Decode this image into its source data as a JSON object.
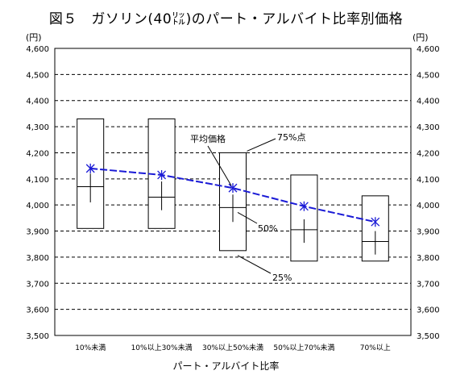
{
  "chart_data": {
    "type": "box",
    "title": "図５　ガソリン(40㍑)のパート・アルバイト比率別価格",
    "xlabel": "パート・アルバイト比率",
    "ylabel": "(円)",
    "ylim": [
      3500,
      4600
    ],
    "ytick_step": 100,
    "grid": true,
    "categories": [
      "10%未満",
      "10%以上30%未満",
      "30%以上50%未満",
      "50%以上70%未満",
      "70%以上"
    ],
    "series": [
      {
        "name": "75%点",
        "values": [
          4330,
          4330,
          4200,
          4115,
          4035
        ]
      },
      {
        "name": "50%",
        "values": [
          4070,
          4030,
          3990,
          3905,
          3860
        ]
      },
      {
        "name": "25%",
        "values": [
          3910,
          3910,
          3825,
          3785,
          3785
        ]
      },
      {
        "name": "平均価格",
        "values": [
          4140,
          4115,
          4065,
          3995,
          3935
        ]
      }
    ],
    "whiskers": [
      [
        4010,
        4120
      ],
      [
        3980,
        4090
      ],
      [
        3935,
        4040
      ],
      [
        3855,
        3945
      ],
      [
        3810,
        3900
      ]
    ],
    "annotations": [
      "平均価格",
      "75%点",
      "50%",
      "25%"
    ],
    "colors": {
      "mean_line": "#1a1ad6",
      "box": "#000000",
      "grid": "#000000"
    }
  }
}
